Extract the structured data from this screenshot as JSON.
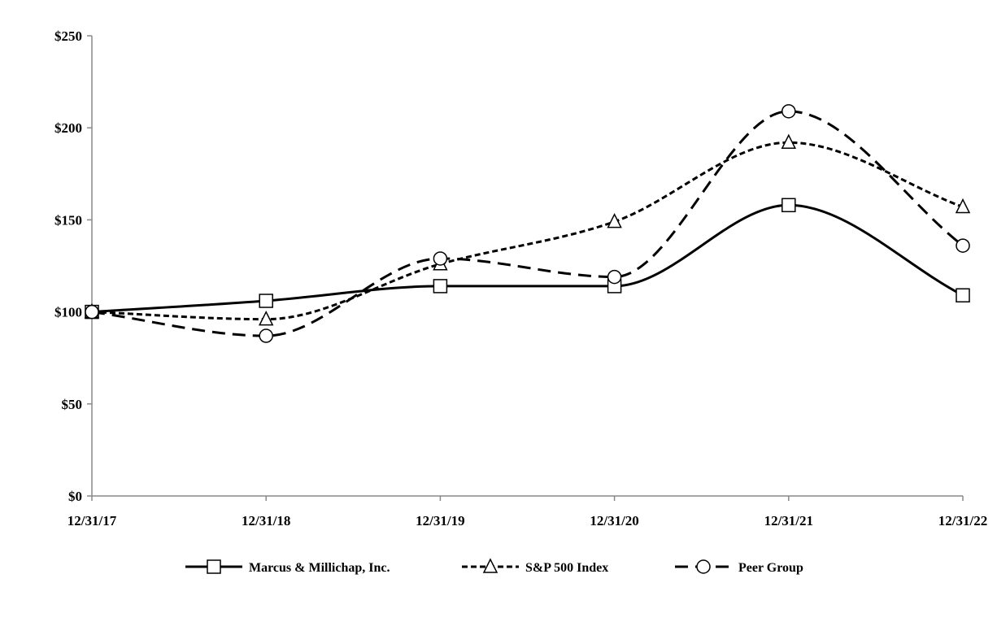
{
  "chart_data": {
    "type": "line",
    "title": "",
    "xlabel": "",
    "ylabel": "",
    "categories": [
      "12/31/17",
      "12/31/18",
      "12/31/19",
      "12/31/20",
      "12/31/21",
      "12/31/22"
    ],
    "yticks": [
      "$0",
      "$50",
      "$100",
      "$150",
      "$200",
      "$250"
    ],
    "ylim": [
      0,
      250
    ],
    "grid": false,
    "legend_position": "bottom",
    "series": [
      {
        "name": "Marcus & Millichap, Inc.",
        "values": [
          100,
          106,
          114,
          114,
          158,
          109
        ],
        "marker": "square",
        "dash": "solid",
        "color": "#000000"
      },
      {
        "name": "S&P 500 Index",
        "values": [
          100,
          96,
          126,
          149,
          192,
          157
        ],
        "marker": "triangle",
        "dash": "short-dash",
        "color": "#000000"
      },
      {
        "name": "Peer Group",
        "values": [
          100,
          87,
          129,
          119,
          209,
          136
        ],
        "marker": "circle",
        "dash": "long-dash",
        "color": "#000000"
      }
    ]
  }
}
